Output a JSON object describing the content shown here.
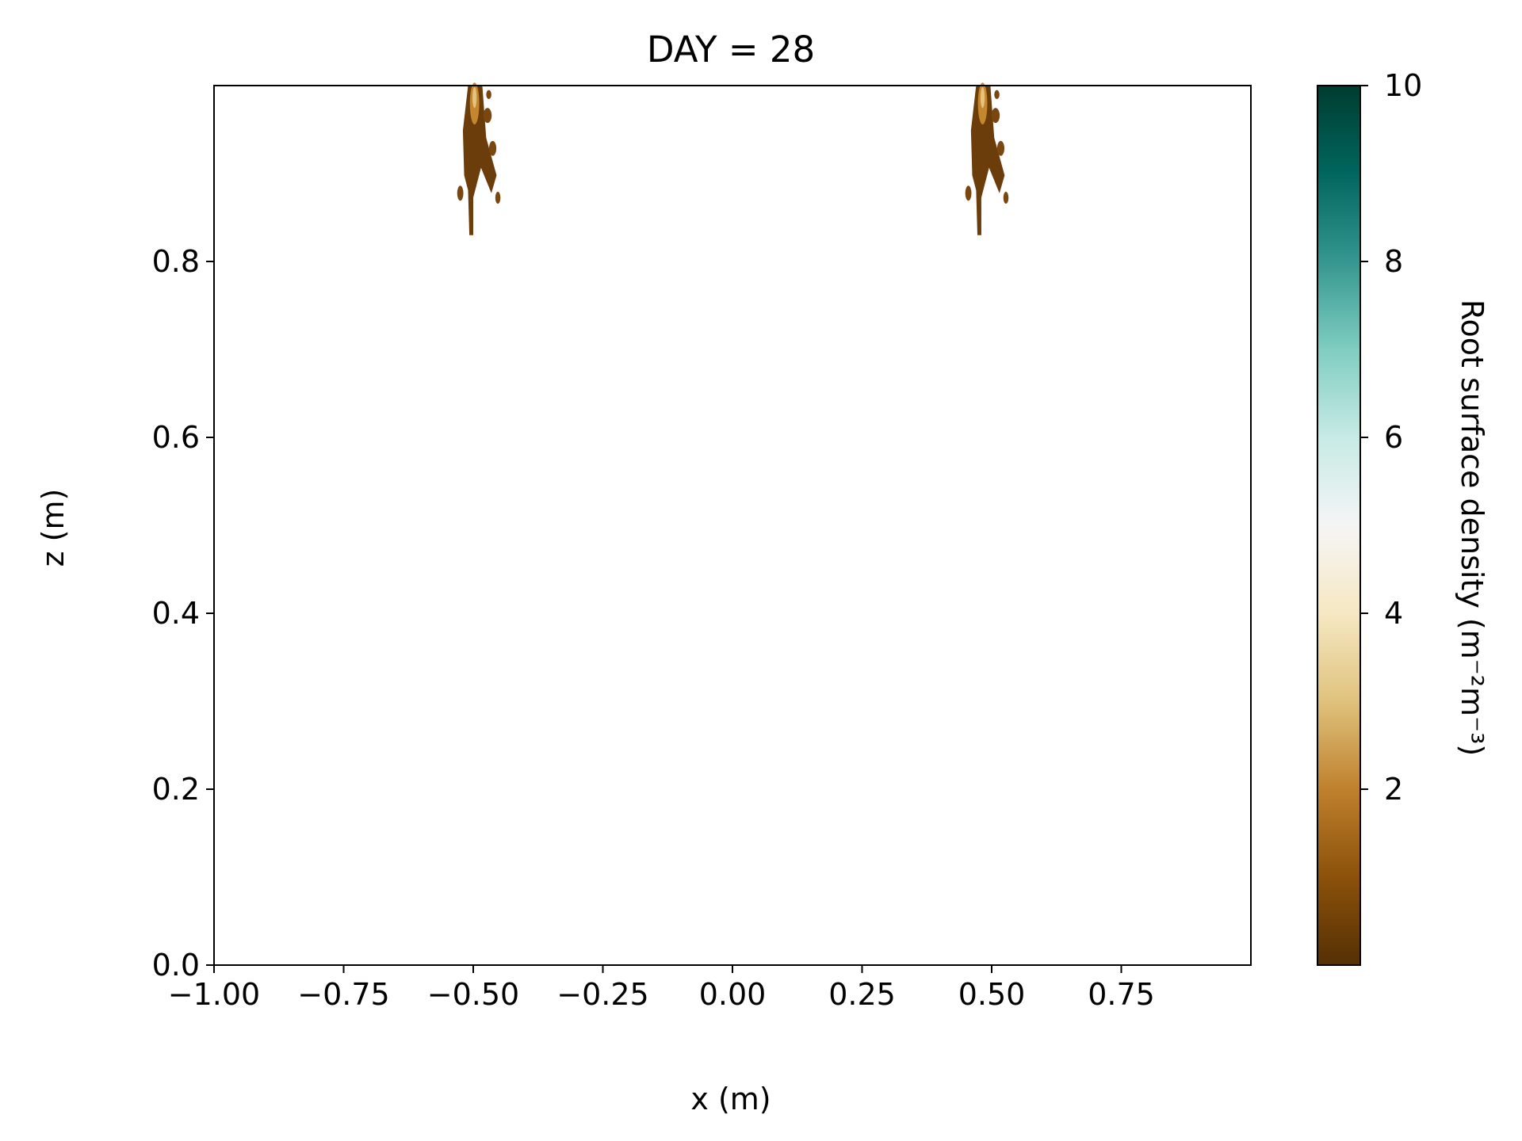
{
  "chart_data": {
    "type": "heatmap",
    "title": "DAY = 28",
    "xlabel": "x (m)",
    "ylabel": "z (m)",
    "xlim": [
      -1.0,
      1.0
    ],
    "ylim": [
      0.0,
      1.0
    ],
    "x_ticks": [
      -1.0,
      -0.75,
      -0.5,
      -0.25,
      0.0,
      0.25,
      0.5,
      0.75
    ],
    "x_tick_labels": [
      "−1.00",
      "−0.75",
      "−0.50",
      "−0.25",
      "0.00",
      "0.25",
      "0.50",
      "0.75"
    ],
    "y_ticks": [
      0.0,
      0.2,
      0.4,
      0.6,
      0.8
    ],
    "y_tick_labels": [
      "0.0",
      "0.2",
      "0.4",
      "0.6",
      "0.8"
    ],
    "colorbar": {
      "label": "Root surface density (m⁻²m⁻³)",
      "range": [
        0,
        10
      ],
      "ticks": [
        2,
        4,
        6,
        8,
        10
      ],
      "tick_labels": [
        "2",
        "4",
        "6",
        "8",
        "10"
      ],
      "colormap": "BrBG",
      "colors": [
        "#543005",
        "#8c510a",
        "#bf812d",
        "#dfc27d",
        "#f6e8c3",
        "#f5f5f5",
        "#c7eae5",
        "#80cdc1",
        "#35978f",
        "#01665e",
        "#003c30"
      ]
    },
    "features": [
      {
        "name": "root-plant-left",
        "x_center": -0.5,
        "z_top": 1.0,
        "z_bottom": 0.83,
        "half_width": 0.05,
        "peak_density": 2.5
      },
      {
        "name": "root-plant-right",
        "x_center": 0.48,
        "z_top": 1.0,
        "z_bottom": 0.83,
        "half_width": 0.05,
        "peak_density": 2.5
      }
    ]
  }
}
